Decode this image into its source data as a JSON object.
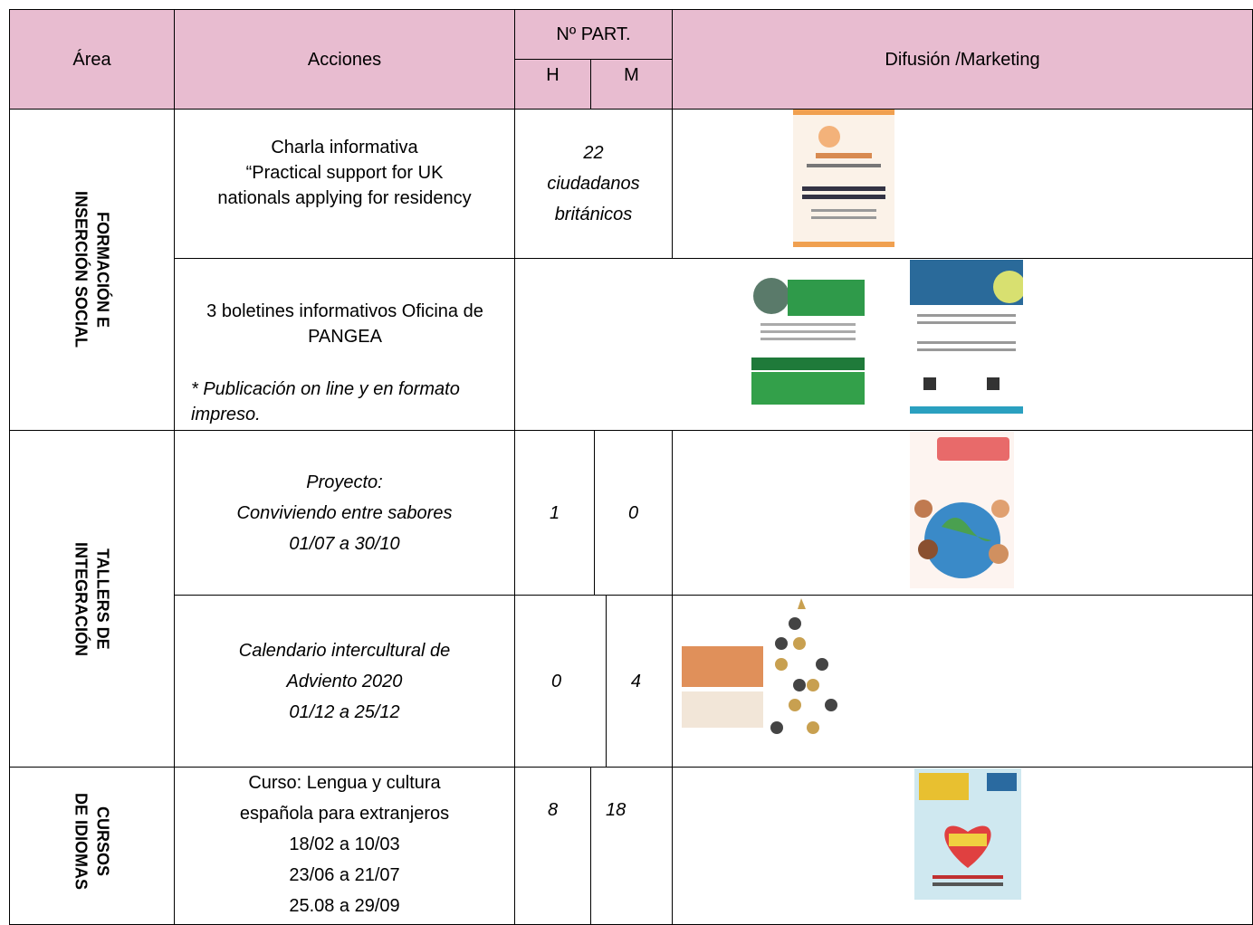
{
  "header": {
    "area": "Área",
    "acciones": "Acciones",
    "participants": "Nº PART.",
    "h": "H",
    "m": "M",
    "difusion": "Difusión /Marketing"
  },
  "sections": [
    {
      "area": [
        "FORMACIÓN E",
        "INSERCIÓN SOCIAL"
      ],
      "actions": [
        {
          "lines": [
            "Charla informativa",
            "“Practical support for UK",
            "nationals applying for residency"
          ],
          "participants": "22 ciudadanos británicos"
        },
        {
          "lines": [
            "3 boletines informativos Oficina de PANGEA"
          ],
          "note": "* Publicación on line y en formato impreso."
        }
      ]
    },
    {
      "area": [
        "TALLERS DE",
        "INTEGRACIÓN"
      ],
      "actions": [
        {
          "lines": [
            "Proyecto:",
            "Conviviendo entre sabores",
            "01/07 a 30/10"
          ],
          "h": 1,
          "m": 0
        },
        {
          "lines": [
            "Calendario intercultural de",
            "Adviento 2020",
            "01/12 a 25/12"
          ],
          "h": 0,
          "m": 4
        }
      ]
    },
    {
      "area": [
        "CURSOS",
        "DE IDIOMAS"
      ],
      "actions": [
        {
          "lines": [
            "Curso: Lengua y cultura",
            "española para extranjeros",
            "18/02 a 10/03",
            "23/06 a 21/07",
            "25.08 a 29/09"
          ],
          "h": 8,
          "m": 18
        }
      ]
    }
  ]
}
